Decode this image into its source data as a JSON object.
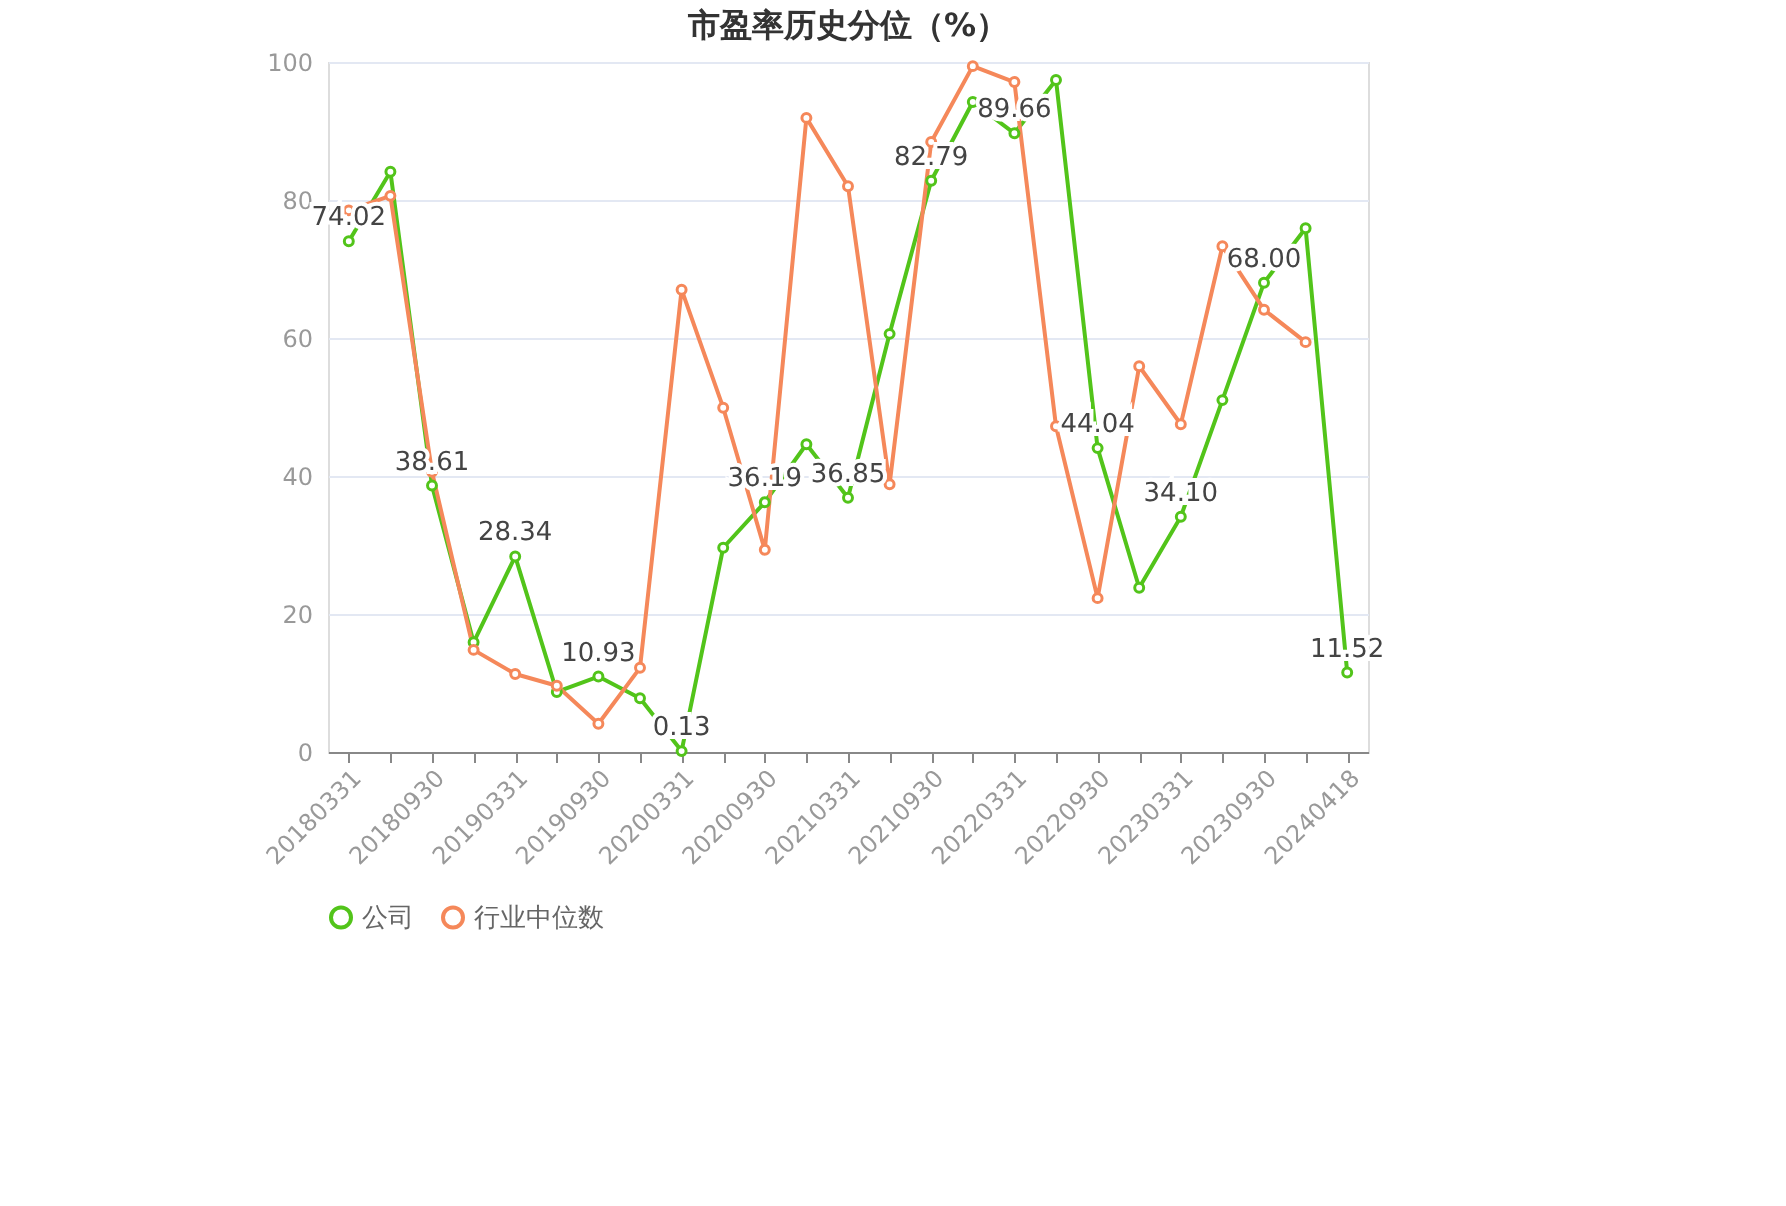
{
  "chart_data": {
    "type": "line",
    "title": "市盈率历史分位（%）",
    "categories": [
      "20180331",
      null,
      "20180930",
      null,
      "20190331",
      null,
      "20190930",
      null,
      "20200331",
      null,
      "20200930",
      null,
      "20210331",
      null,
      "20210930",
      null,
      "20220331",
      null,
      "20220930",
      null,
      "20230331",
      null,
      "20230930",
      null,
      "20240418"
    ],
    "series": [
      {
        "name": "公司",
        "color": "#52c41a",
        "values": [
          74.02,
          84.1,
          38.61,
          15.9,
          28.34,
          8.7,
          10.93,
          7.8,
          0.13,
          29.6,
          36.19,
          44.6,
          36.85,
          60.6,
          82.79,
          94.2,
          89.66,
          97.4,
          44.04,
          23.8,
          34.1,
          51.0,
          68.0,
          75.9,
          11.52
        ],
        "value_labels": [
          "74.02",
          null,
          "38.61",
          null,
          "28.34",
          null,
          "10.93",
          null,
          "0.13",
          null,
          "36.19",
          null,
          "36.85",
          null,
          "82.79",
          null,
          "89.66",
          null,
          "44.04",
          null,
          "34.10",
          null,
          "68.00",
          null,
          "11.52"
        ]
      },
      {
        "name": "行业中位数",
        "color": "#f5885a",
        "values": [
          78.5,
          80.6,
          40.6,
          14.8,
          11.3,
          9.6,
          4.1,
          12.2,
          67.0,
          49.9,
          29.3,
          91.9,
          82.0,
          38.8,
          88.4,
          99.4,
          97.1,
          47.2,
          22.3,
          55.9,
          47.5,
          73.3,
          64.1,
          59.4,
          null
        ]
      }
    ],
    "ylim": [
      0,
      100
    ],
    "yticks": [
      0,
      20,
      40,
      60,
      80,
      100
    ],
    "grid": "y",
    "legend": "bottom",
    "marker": "circle",
    "line_style": "solid"
  }
}
